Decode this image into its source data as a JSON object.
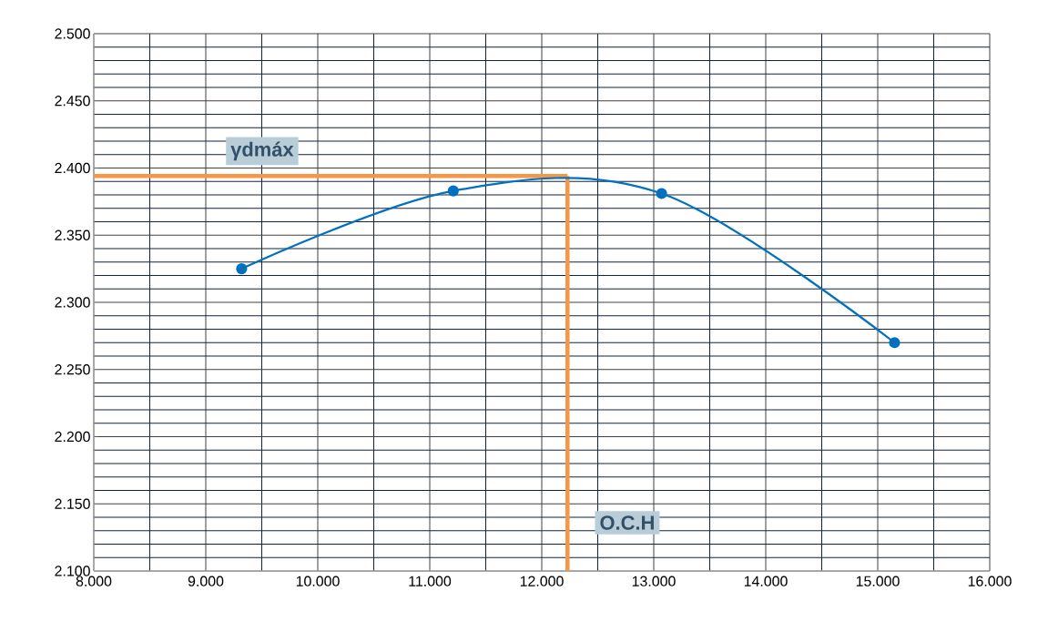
{
  "chart_data": {
    "type": "line",
    "x": [
      9.32,
      11.21,
      13.07,
      15.15
    ],
    "series": [
      {
        "color": "#0070c0",
        "values": [
          2.325,
          2.383,
          2.381,
          2.27
        ]
      }
    ],
    "xlim": [
      8,
      16
    ],
    "ylim": [
      2.1,
      2.5
    ],
    "xticks": [
      {
        "value": 8,
        "label": "8.000"
      },
      {
        "value": 9,
        "label": "9.000"
      },
      {
        "value": 10,
        "label": "10.000"
      },
      {
        "value": 11,
        "label": "11.000"
      },
      {
        "value": 12,
        "label": "12.000"
      },
      {
        "value": 13,
        "label": "13.000"
      },
      {
        "value": 14,
        "label": "14.000"
      },
      {
        "value": 15,
        "label": "15.000"
      },
      {
        "value": 16,
        "label": "16.000"
      }
    ],
    "yticks": [
      {
        "value": 2.1,
        "label": "2.100"
      },
      {
        "value": 2.15,
        "label": "2.150"
      },
      {
        "value": 2.2,
        "label": "2.200"
      },
      {
        "value": 2.25,
        "label": "2.250"
      },
      {
        "value": 2.3,
        "label": "2.300"
      },
      {
        "value": 2.35,
        "label": "2.350"
      },
      {
        "value": 2.4,
        "label": "2.400"
      },
      {
        "value": 2.45,
        "label": "2.450"
      },
      {
        "value": 2.5,
        "label": "2.500"
      }
    ],
    "ref_lines": [
      {
        "axis": "y",
        "value": 2.394,
        "label": "γdmáx",
        "color": "#f79646"
      },
      {
        "axis": "x",
        "value": 12.23,
        "label": "O.C.H",
        "color": "#f79646"
      }
    ],
    "grid": true,
    "marker": "circle",
    "line_style": "solid"
  }
}
